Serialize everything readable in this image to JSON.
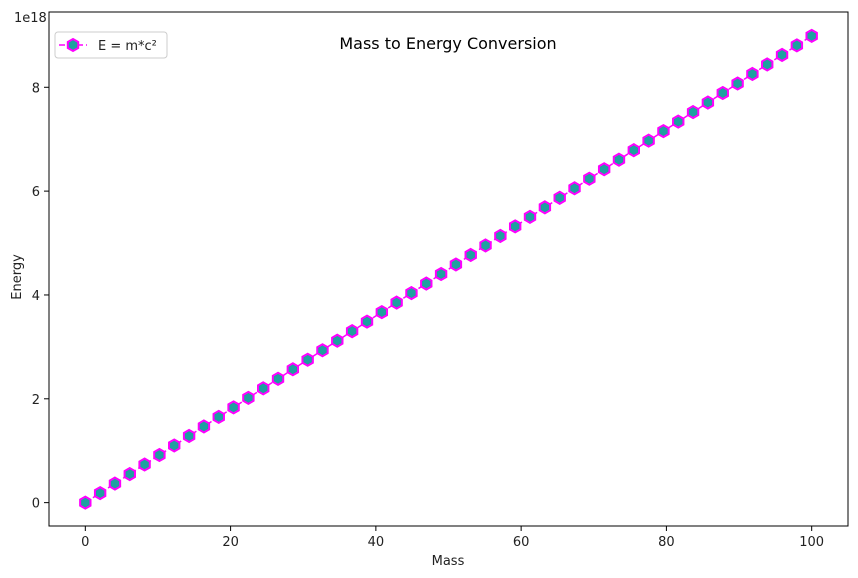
{
  "chart_data": {
    "type": "line",
    "title": "Mass to Energy Conversion",
    "xlabel": "Mass",
    "ylabel": "Energy",
    "offset_label": "1e18",
    "xlim": [
      -5,
      105
    ],
    "ylim": [
      -0.45,
      9.45
    ],
    "y_scale_factor": 1e+18,
    "xticks": [
      0,
      20,
      40,
      60,
      80,
      100
    ],
    "yticks": [
      0,
      2,
      4,
      6,
      8
    ],
    "xtick_labels": [
      "0",
      "20",
      "40",
      "60",
      "80",
      "100"
    ],
    "ytick_labels": [
      "0",
      "2",
      "4",
      "6",
      "8"
    ],
    "grid": false,
    "legend_position": "upper-left",
    "series": [
      {
        "name": "E = m*c²",
        "line_color": "#ff00ff",
        "line_style": "dashed",
        "marker": "hexagon",
        "marker_face": "#1fa0a0",
        "marker_edge": "#ff00ff",
        "x": [
          0,
          2.04,
          4.08,
          6.12,
          8.16,
          10.2,
          12.24,
          14.29,
          16.33,
          18.37,
          20.41,
          22.45,
          24.49,
          26.53,
          28.57,
          30.61,
          32.65,
          34.69,
          36.73,
          38.78,
          40.82,
          42.86,
          44.9,
          46.94,
          48.98,
          51.02,
          53.06,
          55.1,
          57.14,
          59.18,
          61.22,
          63.27,
          65.31,
          67.35,
          69.39,
          71.43,
          73.47,
          75.51,
          77.55,
          79.59,
          81.63,
          83.67,
          85.71,
          87.76,
          89.8,
          91.84,
          93.88,
          95.92,
          97.96,
          100
        ],
        "y": [
          0,
          0.1835,
          0.367,
          0.5504,
          0.7339,
          0.9174,
          1.1009,
          1.2844,
          1.4678,
          1.6513,
          1.8348,
          2.0183,
          2.2018,
          2.3852,
          2.5687,
          2.7522,
          2.9357,
          3.1191,
          3.3026,
          3.4861,
          3.6696,
          3.8531,
          4.0365,
          4.22,
          4.4035,
          4.587,
          4.7705,
          4.9539,
          5.1374,
          5.3209,
          5.5044,
          5.6879,
          5.8713,
          6.0548,
          6.2383,
          6.4218,
          6.6052,
          6.7887,
          6.9722,
          7.1557,
          7.3392,
          7.5226,
          7.7061,
          7.8896,
          8.0731,
          8.2566,
          8.44,
          8.6235,
          8.807,
          8.9905
        ]
      }
    ]
  }
}
